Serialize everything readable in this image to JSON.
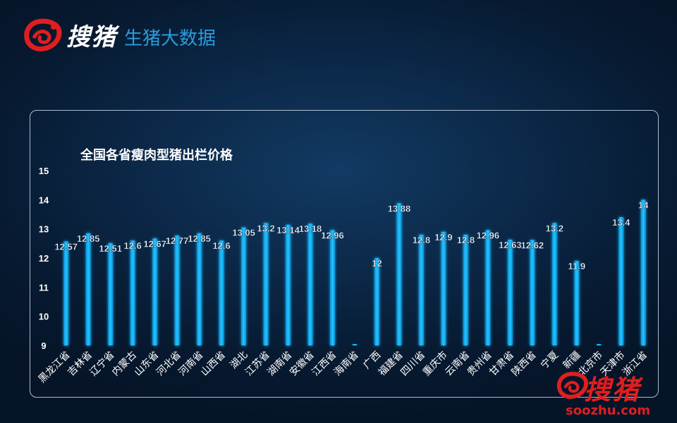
{
  "header": {
    "brand": "搜猪",
    "title": "生猪大数据"
  },
  "colors": {
    "bar": "#19b6f0",
    "bar_glow": "#0a86d0",
    "brand_red": "#e01e20",
    "title_blue": "#2b9cdc"
  },
  "icons": {
    "logo": "pig-logo-icon"
  },
  "watermark": {
    "brand": "搜猪",
    "url": "soozhu.com"
  },
  "chart_data": {
    "type": "bar",
    "title": "全国各省瘦肉型猪出栏价格",
    "xlabel": "",
    "ylabel": "",
    "ylim": [
      9,
      15
    ],
    "yticks": [
      9,
      10,
      11,
      12,
      13,
      14,
      15
    ],
    "grid": false,
    "legend": "none",
    "categories": [
      "黑龙江省",
      "吉林省",
      "辽宁省",
      "内蒙古",
      "山东省",
      "河北省",
      "河南省",
      "山西省",
      "湖北",
      "江苏省",
      "湖南省",
      "安徽省",
      "江西省",
      "海南省",
      "广西",
      "福建省",
      "四川省",
      "重庆市",
      "云南省",
      "贵州省",
      "甘肃省",
      "陕西省",
      "宁夏",
      "新疆",
      "北京市",
      "天津市",
      "浙江省"
    ],
    "values": [
      12.57,
      12.85,
      12.51,
      12.6,
      12.67,
      12.77,
      12.85,
      12.6,
      13.05,
      13.2,
      13.14,
      13.18,
      12.96,
      null,
      12,
      13.88,
      12.8,
      12.9,
      12.8,
      12.96,
      12.63,
      12.62,
      13.2,
      11.9,
      null,
      13.4,
      14
    ],
    "labels": [
      "12.57",
      "12.85",
      "12.51",
      "12.6",
      "12.67",
      "12.77",
      "12.85",
      "12.6",
      "13.05",
      "13.2",
      "13.14",
      "13.18",
      "12.96",
      "",
      "12",
      "13.88",
      "12.8",
      "12.9",
      "12.8",
      "12.96",
      "12.63",
      "12.62",
      "13.2",
      "11.9",
      "",
      "13.4",
      "14"
    ]
  }
}
